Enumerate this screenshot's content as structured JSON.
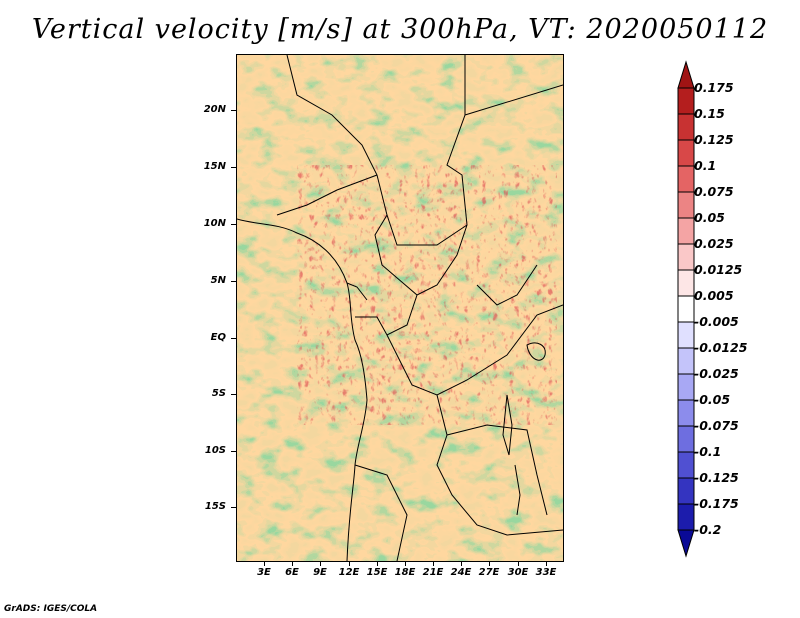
{
  "title": "Vertical velocity [m/s] at 300hPa, VT: 2020050112",
  "credit": "GrADS: IGES/COLA",
  "map": {
    "lon_range": [
      0,
      35
    ],
    "lat_range": [
      -20,
      25
    ],
    "lat_labels": [
      "20N",
      "15N",
      "10N",
      "5N",
      "EQ",
      "5S",
      "10S",
      "15S"
    ],
    "lat_values": [
      20,
      15,
      10,
      5,
      0,
      -5,
      -10,
      -15
    ],
    "lon_labels": [
      "3E",
      "6E",
      "9E",
      "12E",
      "15E",
      "18E",
      "21E",
      "24E",
      "27E",
      "30E",
      "33E"
    ],
    "lon_values": [
      3,
      6,
      9,
      12,
      15,
      18,
      21,
      24,
      27,
      30,
      33
    ]
  },
  "colorbar": {
    "levels": [
      "0.175",
      "0.15",
      "0.125",
      "0.1",
      "0.075",
      "0.05",
      "0.025",
      "0.0125",
      "0.005",
      "-0.005",
      "-0.0125",
      "-0.025",
      "-0.05",
      "-0.075",
      "-0.1",
      "-0.125",
      "-0.175",
      "-0.2"
    ],
    "colors": [
      "#a01414",
      "#b41e1e",
      "#c83232",
      "#d84848",
      "#e46464",
      "#ec8484",
      "#f4a4a4",
      "#fac8c8",
      "#fde6e6",
      "#ffffff",
      "#e0e0ff",
      "#c4c4fa",
      "#a8a8f4",
      "#8c8cec",
      "#6e6ee0",
      "#5050d2",
      "#3434c0",
      "#1c1cac",
      "#0a0a96"
    ]
  }
}
